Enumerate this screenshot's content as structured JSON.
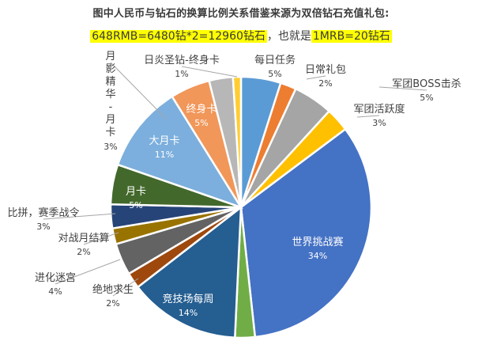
{
  "title": "图中人民币与钻石的换算比例关系借鉴来源为双倍钻石充值礼包:",
  "subtitle": {
    "part1": "648RMB=6480钻*2=12960钻石",
    "part2": "，也就是",
    "part3": "1MRB=20钻石"
  },
  "chart_data": {
    "type": "pie",
    "start": "12 o'clock",
    "direction": "clockwise",
    "slices": [
      {
        "label": "每日任务",
        "value": 5,
        "pct_label": "5%",
        "color": "#5B9BD5"
      },
      {
        "label": "日常礼包",
        "value": 2,
        "pct_label": "2%",
        "color": "#ED7D31"
      },
      {
        "label": "军团BOSS击杀",
        "value": 5,
        "pct_label": "5%",
        "color": "#A5A5A5"
      },
      {
        "label": "军团活跃度",
        "value": 3,
        "pct_label": "3%",
        "color": "#FFC000"
      },
      {
        "label": "世界挑战赛",
        "value": 34,
        "pct_label": "34%",
        "color": "#4472C4"
      },
      {
        "label": "",
        "value": 2.5,
        "pct_label": "",
        "color": "#70AD47"
      },
      {
        "label": "竞技场每周",
        "value": 14,
        "pct_label": "14%",
        "color": "#255E91"
      },
      {
        "label": "绝地求生",
        "value": 2,
        "pct_label": "2%",
        "color": "#9E480E"
      },
      {
        "label": "进化迷宫",
        "value": 4,
        "pct_label": "4%",
        "color": "#636363"
      },
      {
        "label": "对战月结算",
        "value": 2,
        "pct_label": "2%",
        "color": "#997300"
      },
      {
        "label": "比拼，赛季战令",
        "value": 3,
        "pct_label": "3%",
        "color": "#264478"
      },
      {
        "label": "月卡",
        "value": 5,
        "pct_label": "5%",
        "color": "#43682B"
      },
      {
        "label": "大月卡",
        "value": 11,
        "pct_label": "11%",
        "color": "#7CAFDD"
      },
      {
        "label": "终身卡",
        "value": 5,
        "pct_label": "5%",
        "color": "#F1975A"
      },
      {
        "label": "月影精华-月卡",
        "value": 3,
        "pct_label": "3%",
        "color": "#B7B7B7"
      },
      {
        "label": "日炎圣钻-终身卡",
        "value": 1,
        "pct_label": "1%",
        "color": "#FFCD33"
      }
    ]
  }
}
